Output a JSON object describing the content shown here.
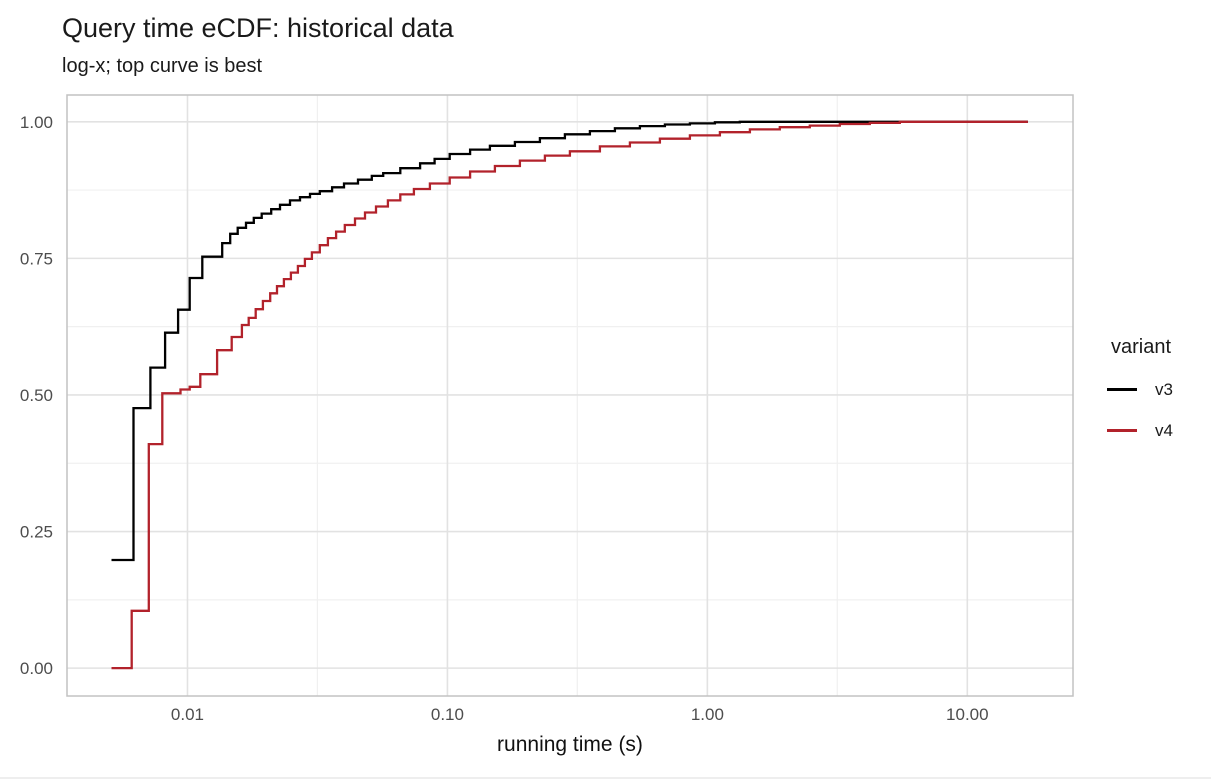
{
  "chart_data": {
    "type": "line",
    "subtype": "ecdf-step",
    "title": "Query time eCDF: historical data",
    "subtitle": "log-x; top curve is best",
    "xlabel": "running time (s)",
    "ylabel": "",
    "x_scale": "log10",
    "grid": "on",
    "legend_position": "right",
    "xlim": [
      0.00344,
      25.5
    ],
    "ylim": [
      -0.051,
      1.049
    ],
    "x_ticks": [
      0.01,
      0.1,
      1.0,
      10.0
    ],
    "x_tick_labels": [
      "0.01",
      "0.10",
      "1.00",
      "10.00"
    ],
    "x_minor_ticks": [
      0.0316,
      0.316,
      3.16
    ],
    "y_ticks": [
      0.0,
      0.25,
      0.5,
      0.75,
      1.0
    ],
    "y_tick_labels": [
      "0.00",
      "0.25",
      "0.50",
      "0.75",
      "1.00"
    ],
    "y_minor_ticks": [
      0.125,
      0.375,
      0.625,
      0.875
    ],
    "colors": {
      "grid_major": "#e2e2e2",
      "grid_minor": "#f0f0f0",
      "panel_border": "#c2c2c2",
      "axis_text": "#4d4d4d",
      "v3": "#000000",
      "v4": "#b2222b"
    },
    "legend": {
      "title": "variant",
      "entries": [
        {
          "label": "v3",
          "color": "#000000"
        },
        {
          "label": "v4",
          "color": "#b2222b"
        }
      ]
    },
    "series": [
      {
        "name": "v3",
        "color": "#000000",
        "points": [
          [
            0.0051,
            0.198
          ],
          [
            0.0062,
            0.476
          ],
          [
            0.0072,
            0.55
          ],
          [
            0.0082,
            0.614
          ],
          [
            0.0092,
            0.656
          ],
          [
            0.0102,
            0.714
          ],
          [
            0.0114,
            0.753
          ],
          [
            0.0136,
            0.778
          ],
          [
            0.0146,
            0.795
          ],
          [
            0.0156,
            0.806
          ],
          [
            0.0168,
            0.815
          ],
          [
            0.018,
            0.824
          ],
          [
            0.0193,
            0.832
          ],
          [
            0.021,
            0.84
          ],
          [
            0.0227,
            0.848
          ],
          [
            0.0248,
            0.856
          ],
          [
            0.0271,
            0.862
          ],
          [
            0.0296,
            0.868
          ],
          [
            0.0323,
            0.873
          ],
          [
            0.036,
            0.88
          ],
          [
            0.04,
            0.887
          ],
          [
            0.0453,
            0.894
          ],
          [
            0.0512,
            0.901
          ],
          [
            0.0566,
            0.906
          ],
          [
            0.0659,
            0.915
          ],
          [
            0.0785,
            0.924
          ],
          [
            0.0893,
            0.932
          ],
          [
            0.102,
            0.941
          ],
          [
            0.1222,
            0.949
          ],
          [
            0.1457,
            0.956
          ],
          [
            0.1818,
            0.963
          ],
          [
            0.2269,
            0.97
          ],
          [
            0.283,
            0.977
          ],
          [
            0.3532,
            0.983
          ],
          [
            0.4407,
            0.988
          ],
          [
            0.55,
            0.992
          ],
          [
            0.6863,
            0.995
          ],
          [
            0.8564,
            0.997
          ],
          [
            1.069,
            0.999
          ],
          [
            1.333,
            1.0
          ],
          [
            17.1,
            1.0
          ]
        ]
      },
      {
        "name": "v4",
        "color": "#b2222b",
        "points": [
          [
            0.0051,
            0.0
          ],
          [
            0.0061,
            0.105
          ],
          [
            0.0071,
            0.41
          ],
          [
            0.008,
            0.503
          ],
          [
            0.0094,
            0.51
          ],
          [
            0.0102,
            0.515
          ],
          [
            0.0112,
            0.538
          ],
          [
            0.013,
            0.582
          ],
          [
            0.0148,
            0.606
          ],
          [
            0.0162,
            0.628
          ],
          [
            0.0172,
            0.641
          ],
          [
            0.0183,
            0.657
          ],
          [
            0.0195,
            0.672
          ],
          [
            0.0208,
            0.686
          ],
          [
            0.0221,
            0.699
          ],
          [
            0.0235,
            0.712
          ],
          [
            0.025,
            0.724
          ],
          [
            0.0266,
            0.736
          ],
          [
            0.0283,
            0.749
          ],
          [
            0.0301,
            0.761
          ],
          [
            0.0323,
            0.774
          ],
          [
            0.0347,
            0.787
          ],
          [
            0.0373,
            0.799
          ],
          [
            0.0403,
            0.811
          ],
          [
            0.0441,
            0.823
          ],
          [
            0.0482,
            0.834
          ],
          [
            0.0531,
            0.845
          ],
          [
            0.059,
            0.856
          ],
          [
            0.0659,
            0.867
          ],
          [
            0.0743,
            0.877
          ],
          [
            0.0856,
            0.887
          ],
          [
            0.102,
            0.898
          ],
          [
            0.1222,
            0.909
          ],
          [
            0.1523,
            0.919
          ],
          [
            0.19,
            0.929
          ],
          [
            0.2371,
            0.938
          ],
          [
            0.2959,
            0.946
          ],
          [
            0.3861,
            0.955
          ],
          [
            0.5035,
            0.962
          ],
          [
            0.6566,
            0.969
          ],
          [
            0.8564,
            0.975
          ],
          [
            1.117,
            0.981
          ],
          [
            1.457,
            0.986
          ],
          [
            1.9,
            0.99
          ],
          [
            2.478,
            0.993
          ],
          [
            3.233,
            0.996
          ],
          [
            4.217,
            0.998
          ],
          [
            5.5,
            1.0
          ],
          [
            17.1,
            1.0
          ]
        ]
      }
    ]
  }
}
